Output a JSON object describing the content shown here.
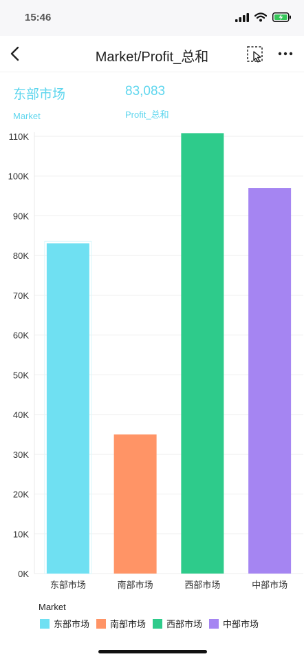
{
  "status": {
    "time": "15:46"
  },
  "nav": {
    "title": "Market/Profit_总和"
  },
  "kpi": {
    "market_value": "东部市场",
    "market_label": "Market",
    "profit_value": "83,083",
    "profit_label": "Profit_总和"
  },
  "legend": {
    "title": "Market"
  },
  "colors": {
    "accent": "#5fd6ee"
  },
  "chart_data": {
    "type": "bar",
    "categories": [
      "东部市场",
      "南部市场",
      "西部市场",
      "中部市场"
    ],
    "values": [
      83083,
      35000,
      110800,
      97000
    ],
    "colors": [
      "#6fe0f2",
      "#ff9466",
      "#2ecb8b",
      "#a585f2"
    ],
    "selected_index": 0,
    "ylim": [
      0,
      110000
    ],
    "yticks": [
      0,
      10000,
      20000,
      30000,
      40000,
      50000,
      60000,
      70000,
      80000,
      90000,
      100000,
      110000
    ],
    "ytick_labels": [
      "0K",
      "10K",
      "20K",
      "30K",
      "40K",
      "50K",
      "60K",
      "70K",
      "80K",
      "90K",
      "100K",
      "110K"
    ],
    "grid": true,
    "legend_position": "bottom-left"
  }
}
